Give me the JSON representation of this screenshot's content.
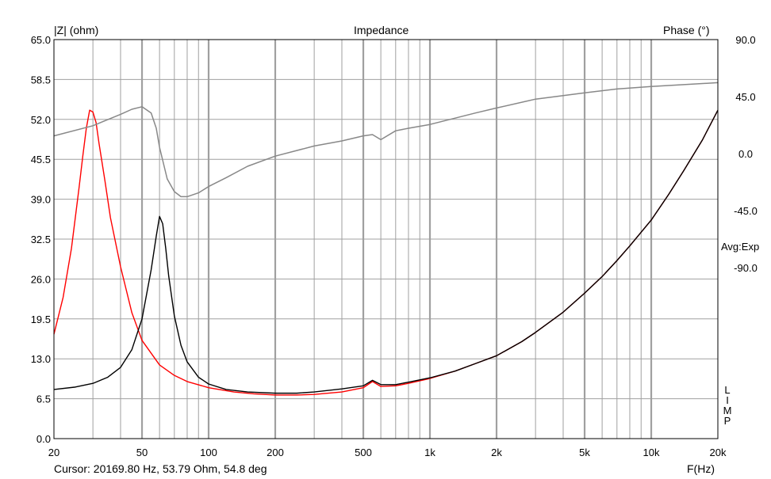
{
  "chart_data": {
    "type": "line",
    "title": "Impedance",
    "ylabel": "|Z| (ohm)",
    "y2label": "Phase (°)",
    "xlabel": "F(Hz)",
    "xscale": "log",
    "xlim": [
      20,
      20000
    ],
    "ylim": [
      0,
      65
    ],
    "y2lim": [
      -225,
      90
    ],
    "x_ticks": [
      {
        "v": 20,
        "label": "20"
      },
      {
        "v": 50,
        "label": "50"
      },
      {
        "v": 100,
        "label": "100"
      },
      {
        "v": 200,
        "label": "200"
      },
      {
        "v": 500,
        "label": "500"
      },
      {
        "v": 1000,
        "label": "1k"
      },
      {
        "v": 2000,
        "label": "2k"
      },
      {
        "v": 5000,
        "label": "5k"
      },
      {
        "v": 10000,
        "label": "10k"
      },
      {
        "v": 20000,
        "label": "20k"
      }
    ],
    "y_ticks": [
      "0.0",
      "6.5",
      "13.0",
      "19.5",
      "26.0",
      "32.5",
      "39.0",
      "45.5",
      "52.0",
      "58.5",
      "65.0"
    ],
    "y2_ticks": [
      "90.0",
      "45.0",
      "0.0",
      "-45.0",
      "-90.0"
    ],
    "grid": true,
    "annotations": {
      "avg": "Avg:Exp",
      "limp": "L\nI\nM\nP"
    },
    "cursor_text": "Cursor: 20169.80 Hz, 53.79 Ohm, 54.8 deg",
    "colors": {
      "red": "#ff0000",
      "black": "#000000",
      "phase": "#888888",
      "grid": "#a0a0a0"
    },
    "series": [
      {
        "color": "#ff0000",
        "axis": "left",
        "x": [
          20,
          22,
          24,
          26,
          27,
          28,
          29,
          30,
          31,
          32,
          34,
          36,
          40,
          45,
          50,
          60,
          70,
          80,
          100,
          130,
          160,
          200,
          250,
          300,
          400,
          500,
          550,
          600,
          700,
          800,
          1000,
          1300,
          1600,
          2000,
          2600,
          3000,
          4000,
          5000,
          6000,
          7000,
          8000,
          10000,
          12000,
          14000,
          17000,
          20000
        ],
        "y": [
          17,
          23,
          31,
          41,
          46,
          50.5,
          53.5,
          53.2,
          51.5,
          48,
          42,
          36,
          28,
          20.5,
          16,
          12,
          10.3,
          9.3,
          8.3,
          7.6,
          7.3,
          7.1,
          7.1,
          7.2,
          7.6,
          8.3,
          9.3,
          8.5,
          8.6,
          9.0,
          9.8,
          11.0,
          12.2,
          13.5,
          15.8,
          17.3,
          20.6,
          23.7,
          26.4,
          29.0,
          31.4,
          35.6,
          39.8,
          43.6,
          48.6,
          53.5
        ]
      },
      {
        "color": "#000000",
        "axis": "left",
        "x": [
          20,
          25,
          30,
          35,
          40,
          45,
          50,
          55,
          58,
          60,
          62,
          64,
          66,
          70,
          75,
          80,
          90,
          100,
          120,
          150,
          200,
          250,
          300,
          400,
          500,
          550,
          600,
          700,
          800,
          1000,
          1300,
          1600,
          2000,
          2600,
          3000,
          4000,
          5000,
          6000,
          7000,
          8000,
          10000,
          12000,
          14000,
          17000,
          20000
        ],
        "y": [
          8.0,
          8.4,
          9.0,
          10.0,
          11.6,
          14.5,
          19.5,
          27.5,
          33,
          36.2,
          35,
          31,
          26.5,
          20,
          15.2,
          12.5,
          10.0,
          8.9,
          8.0,
          7.6,
          7.4,
          7.4,
          7.6,
          8.1,
          8.6,
          9.5,
          8.8,
          8.8,
          9.2,
          9.9,
          11.0,
          12.2,
          13.5,
          15.8,
          17.3,
          20.6,
          23.7,
          26.4,
          29.0,
          31.4,
          35.6,
          39.8,
          43.6,
          48.6,
          53.5
        ]
      },
      {
        "color": "#888888",
        "axis": "right",
        "x": [
          20,
          30,
          40,
          45,
          50,
          55,
          58,
          60,
          65,
          70,
          75,
          80,
          90,
          100,
          120,
          150,
          200,
          300,
          400,
          500,
          550,
          600,
          700,
          800,
          1000,
          1300,
          1600,
          2000,
          3000,
          5000,
          7000,
          10000,
          20000
        ],
        "y": [
          14,
          22,
          31,
          35,
          37,
          32,
          20,
          5,
          -20,
          -30,
          -34,
          -34,
          -31,
          -26,
          -19,
          -10,
          -2,
          6,
          10,
          14,
          15,
          11,
          18,
          20,
          23,
          28,
          32,
          36,
          43,
          48,
          51,
          53,
          56
        ]
      }
    ]
  }
}
